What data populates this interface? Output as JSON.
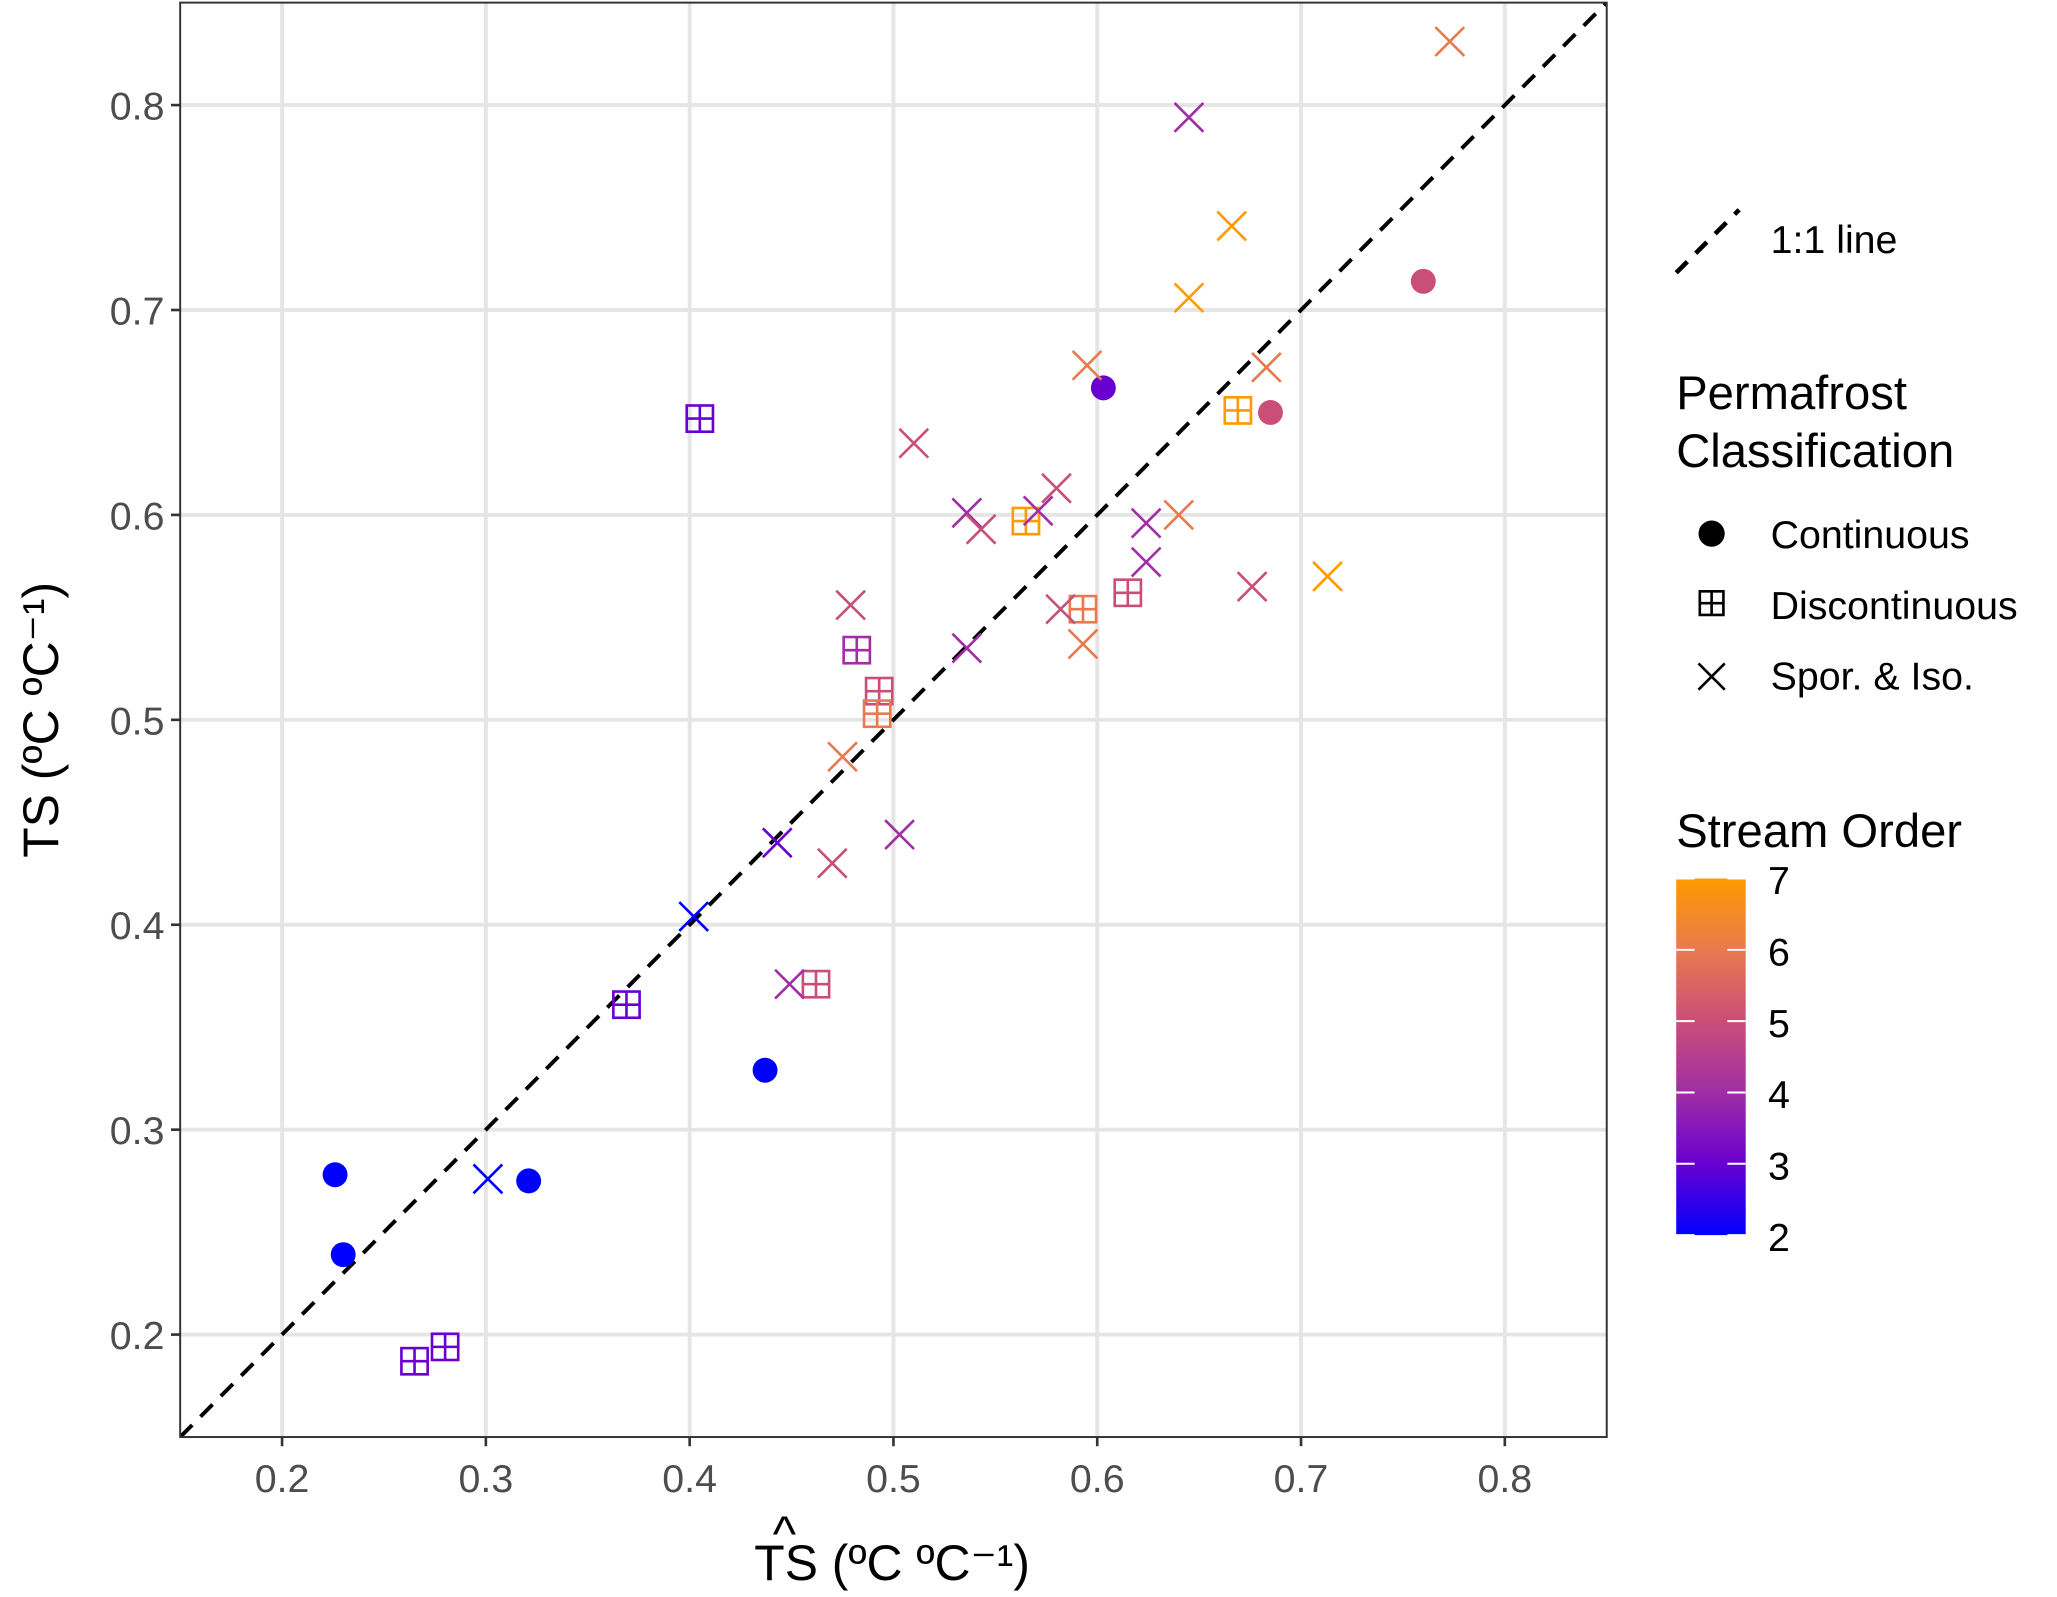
{
  "chart_data": {
    "type": "scatter",
    "title": "",
    "xlabel": "TS (ºC ºC⁻¹)",
    "xlabel_hat": "^",
    "ylabel": "TS (ºC ºC⁻¹)",
    "xlim": [
      0.15,
      0.85
    ],
    "ylim": [
      0.15,
      0.85
    ],
    "xticks": [
      0.2,
      0.3,
      0.4,
      0.5,
      0.6,
      0.7,
      0.8
    ],
    "yticks": [
      0.2,
      0.3,
      0.4,
      0.5,
      0.6,
      0.7,
      0.8
    ],
    "xtick_labels": [
      "0.2",
      "0.3",
      "0.4",
      "0.5",
      "0.6",
      "0.7",
      "0.8"
    ],
    "ytick_labels": [
      "0.2",
      "0.3",
      "0.4",
      "0.5",
      "0.6",
      "0.7",
      "0.8"
    ],
    "grid": true,
    "reference_line": {
      "label": "1:1 line",
      "slope": 1,
      "intercept": 0,
      "style": "dashed"
    },
    "legend": {
      "placement": "right",
      "line_label": "1:1 line",
      "shape_title": [
        "Permafrost",
        "Classification"
      ],
      "shapes": [
        {
          "key": "continuous",
          "label": "Continuous",
          "symbol": "filled-circle"
        },
        {
          "key": "discontinuous",
          "label": "Discontinuous",
          "symbol": "boxed-plus"
        },
        {
          "key": "spor",
          "label": "Spor. & Iso.",
          "symbol": "cross"
        }
      ],
      "color_title": "Stream Order",
      "color_range": [
        2,
        7
      ],
      "color_ticks": [
        "7",
        "6",
        "5",
        "4",
        "3",
        "2"
      ],
      "color_stops": [
        "#0000FF",
        "#6A00D0",
        "#A02EA4",
        "#C94F78",
        "#E77A4E",
        "#FF9A00"
      ]
    },
    "series": [
      {
        "name": "Continuous",
        "shape": "continuous",
        "points": [
          {
            "x": 0.226,
            "y": 0.278,
            "order": 2
          },
          {
            "x": 0.23,
            "y": 0.239,
            "order": 2
          },
          {
            "x": 0.321,
            "y": 0.275,
            "order": 2
          },
          {
            "x": 0.437,
            "y": 0.329,
            "order": 2
          },
          {
            "x": 0.603,
            "y": 0.662,
            "order": 3
          },
          {
            "x": 0.685,
            "y": 0.65,
            "order": 5
          },
          {
            "x": 0.76,
            "y": 0.714,
            "order": 5
          }
        ]
      },
      {
        "name": "Discontinuous",
        "shape": "discontinuous",
        "points": [
          {
            "x": 0.265,
            "y": 0.187,
            "order": 3
          },
          {
            "x": 0.28,
            "y": 0.194,
            "order": 3
          },
          {
            "x": 0.369,
            "y": 0.361,
            "order": 3
          },
          {
            "x": 0.405,
            "y": 0.647,
            "order": 3
          },
          {
            "x": 0.462,
            "y": 0.371,
            "order": 5
          },
          {
            "x": 0.482,
            "y": 0.534,
            "order": 4
          },
          {
            "x": 0.493,
            "y": 0.514,
            "order": 5
          },
          {
            "x": 0.492,
            "y": 0.503,
            "order": 6
          },
          {
            "x": 0.565,
            "y": 0.597,
            "order": 7
          },
          {
            "x": 0.593,
            "y": 0.554,
            "order": 6
          },
          {
            "x": 0.615,
            "y": 0.562,
            "order": 5
          },
          {
            "x": 0.669,
            "y": 0.651,
            "order": 7
          }
        ]
      },
      {
        "name": "Spor. & Iso.",
        "shape": "spor",
        "points": [
          {
            "x": 0.301,
            "y": 0.276,
            "order": 2
          },
          {
            "x": 0.402,
            "y": 0.404,
            "order": 2
          },
          {
            "x": 0.443,
            "y": 0.44,
            "order": 3
          },
          {
            "x": 0.449,
            "y": 0.371,
            "order": 4
          },
          {
            "x": 0.47,
            "y": 0.43,
            "order": 5
          },
          {
            "x": 0.503,
            "y": 0.444,
            "order": 4
          },
          {
            "x": 0.475,
            "y": 0.482,
            "order": 6
          },
          {
            "x": 0.479,
            "y": 0.556,
            "order": 5
          },
          {
            "x": 0.51,
            "y": 0.635,
            "order": 5
          },
          {
            "x": 0.536,
            "y": 0.535,
            "order": 4
          },
          {
            "x": 0.536,
            "y": 0.601,
            "order": 4
          },
          {
            "x": 0.543,
            "y": 0.593,
            "order": 5
          },
          {
            "x": 0.571,
            "y": 0.602,
            "order": 4
          },
          {
            "x": 0.58,
            "y": 0.613,
            "order": 5
          },
          {
            "x": 0.582,
            "y": 0.554,
            "order": 5
          },
          {
            "x": 0.593,
            "y": 0.537,
            "order": 6
          },
          {
            "x": 0.595,
            "y": 0.673,
            "order": 6
          },
          {
            "x": 0.624,
            "y": 0.596,
            "order": 4
          },
          {
            "x": 0.624,
            "y": 0.577,
            "order": 4
          },
          {
            "x": 0.64,
            "y": 0.6,
            "order": 6
          },
          {
            "x": 0.676,
            "y": 0.565,
            "order": 5
          },
          {
            "x": 0.683,
            "y": 0.672,
            "order": 6
          },
          {
            "x": 0.645,
            "y": 0.706,
            "order": 7
          },
          {
            "x": 0.666,
            "y": 0.741,
            "order": 7
          },
          {
            "x": 0.713,
            "y": 0.57,
            "order": 7
          },
          {
            "x": 0.645,
            "y": 0.794,
            "order": 4
          },
          {
            "x": 0.773,
            "y": 0.831,
            "order": 6
          }
        ]
      }
    ]
  }
}
